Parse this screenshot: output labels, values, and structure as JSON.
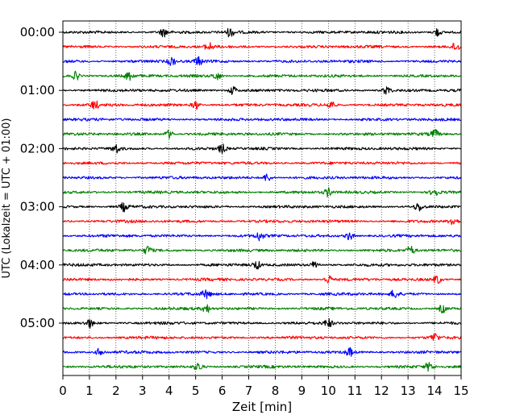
{
  "chart_data": {
    "type": "line",
    "subtype": "seismogram-helicorder",
    "xlabel": "Zeit  [min]",
    "ylabel": "UTC (Lokalzeit = UTC + 01:00)",
    "xlim": [
      0,
      15
    ],
    "x_ticks": [
      "0",
      "1",
      "2",
      "3",
      "4",
      "5",
      "6",
      "7",
      "8",
      "9",
      "10",
      "11",
      "12",
      "13",
      "14",
      "15"
    ],
    "y_tick_labels": [
      "00:00",
      "01:00",
      "02:00",
      "03:00",
      "04:00",
      "05:00"
    ],
    "grid": "vertical dotted lines at each minute",
    "trace_interval_minutes": 15,
    "trace_count": 24,
    "trace_colors": [
      "#000000",
      "#ff0000",
      "#0000ff",
      "#008000"
    ],
    "bursts": [
      {
        "trace": 0,
        "at_min": 3.8
      },
      {
        "trace": 0,
        "at_min": 6.3
      },
      {
        "trace": 0,
        "at_min": 14.1
      },
      {
        "trace": 1,
        "at_min": 5.5
      },
      {
        "trace": 1,
        "at_min": 14.8
      },
      {
        "trace": 2,
        "at_min": 4.1
      },
      {
        "trace": 2,
        "at_min": 5.1
      },
      {
        "trace": 3,
        "at_min": 0.5
      },
      {
        "trace": 3,
        "at_min": 2.5
      },
      {
        "trace": 3,
        "at_min": 5.8
      },
      {
        "trace": 4,
        "at_min": 6.4
      },
      {
        "trace": 4,
        "at_min": 12.2
      },
      {
        "trace": 5,
        "at_min": 1.2
      },
      {
        "trace": 5,
        "at_min": 5.0
      },
      {
        "trace": 5,
        "at_min": 10.1
      },
      {
        "trace": 7,
        "at_min": 4.0
      },
      {
        "trace": 7,
        "at_min": 14.0
      },
      {
        "trace": 8,
        "at_min": 2.0
      },
      {
        "trace": 8,
        "at_min": 6.0
      },
      {
        "trace": 10,
        "at_min": 7.7
      },
      {
        "trace": 11,
        "at_min": 10.0
      },
      {
        "trace": 11,
        "at_min": 14.0
      },
      {
        "trace": 12,
        "at_min": 2.3
      },
      {
        "trace": 12,
        "at_min": 13.4
      },
      {
        "trace": 13,
        "at_min": 14.7
      },
      {
        "trace": 14,
        "at_min": 7.4
      },
      {
        "trace": 14,
        "at_min": 10.8
      },
      {
        "trace": 15,
        "at_min": 3.2
      },
      {
        "trace": 15,
        "at_min": 13.1
      },
      {
        "trace": 16,
        "at_min": 7.3
      },
      {
        "trace": 16,
        "at_min": 9.5
      },
      {
        "trace": 17,
        "at_min": 10.0
      },
      {
        "trace": 17,
        "at_min": 14.1
      },
      {
        "trace": 18,
        "at_min": 5.4
      },
      {
        "trace": 18,
        "at_min": 12.5
      },
      {
        "trace": 19,
        "at_min": 5.4
      },
      {
        "trace": 19,
        "at_min": 14.3
      },
      {
        "trace": 20,
        "at_min": 1.0
      },
      {
        "trace": 20,
        "at_min": 10.0
      },
      {
        "trace": 21,
        "at_min": 14.0
      },
      {
        "trace": 22,
        "at_min": 1.4
      },
      {
        "trace": 22,
        "at_min": 10.8
      },
      {
        "trace": 23,
        "at_min": 5.1
      },
      {
        "trace": 23,
        "at_min": 13.8
      }
    ]
  }
}
